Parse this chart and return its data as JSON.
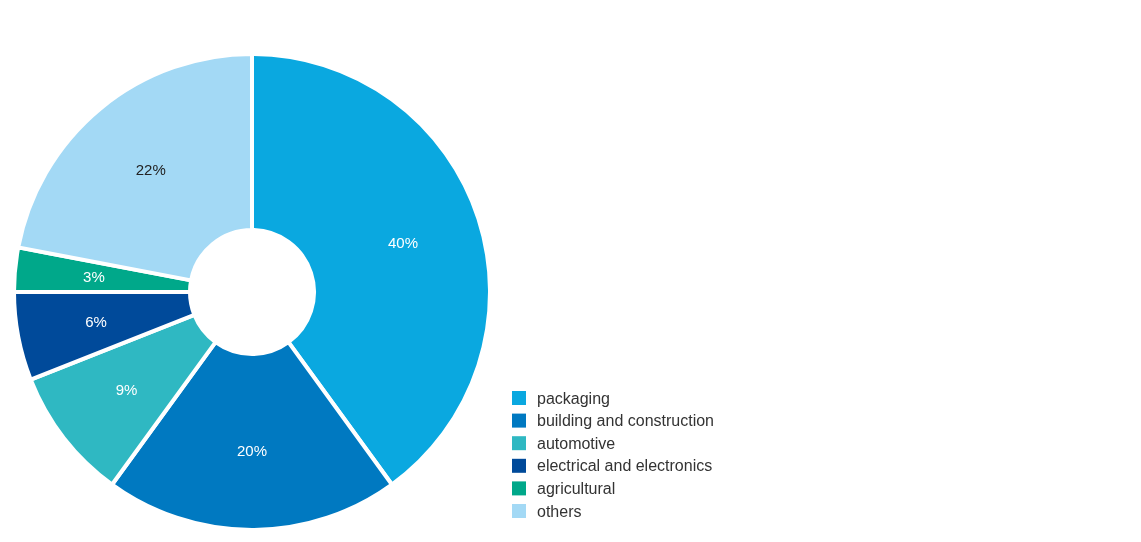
{
  "chart_data": {
    "type": "donut",
    "categories": [
      "packaging",
      "building and construction",
      "automotive",
      "electrical and electronics",
      "agricultural",
      "others"
    ],
    "values": [
      40,
      20,
      9,
      6,
      3,
      22
    ],
    "colors": [
      "#0aa8e0",
      "#0079c1",
      "#2fb8c2",
      "#004a9a",
      "#00a88a",
      "#a3d9f5"
    ],
    "value_labels": [
      "40%",
      "20%",
      "9%",
      "6%",
      "3%",
      "22%"
    ],
    "legend": "right"
  }
}
